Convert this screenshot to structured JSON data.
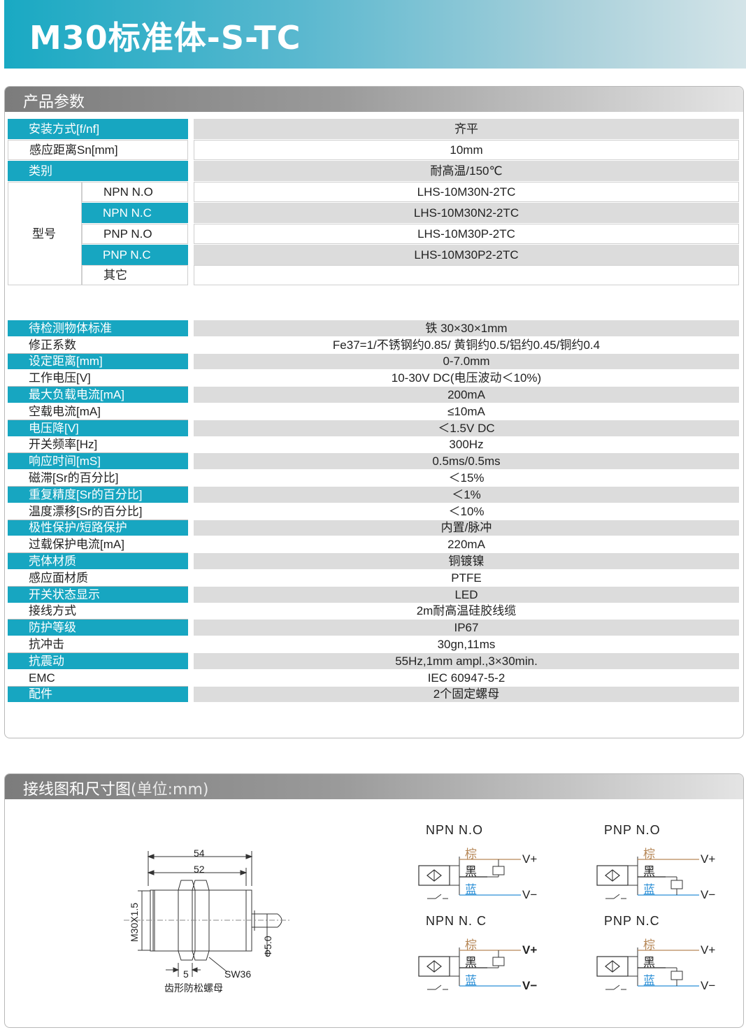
{
  "title": "M30标准体-S-TC",
  "params_heading": "产品参数",
  "top_table": {
    "mount": {
      "label": "安装方式[f/nf]",
      "value": "齐平"
    },
    "distance": {
      "label": "感应距离Sn[mm]",
      "value": "10mm"
    },
    "category": {
      "label": "类别",
      "value": "耐高温/150℃"
    },
    "model_label": "型号",
    "models": [
      {
        "type": "NPN N.O",
        "value": "LHS-10M30N-2TC"
      },
      {
        "type": "NPN N.C",
        "value": "LHS-10M30N2-2TC"
      },
      {
        "type": "PNP N.O",
        "value": "LHS-10M30P-2TC"
      },
      {
        "type": "PNP N.C",
        "value": "LHS-10M30P2-2TC"
      },
      {
        "type": "其它",
        "value": ""
      }
    ]
  },
  "specs": [
    {
      "label": "待检测物体标准",
      "value": "铁 30×30×1mm"
    },
    {
      "label": "修正系数",
      "value": "Fe37=1/不锈钢约0.85/  黄铜约0.5/铝约0.45/铜约0.4"
    },
    {
      "label": "设定距离[mm]",
      "value": "0-7.0mm"
    },
    {
      "label": "工作电压[V]",
      "value": "10-30V DC(电压波动＜10%)"
    },
    {
      "label": "最大负载电流[mA]",
      "value": "200mA"
    },
    {
      "label": "空载电流[mA]",
      "value": "≤10mA"
    },
    {
      "label": "电压降[V]",
      "value": "＜1.5V DC"
    },
    {
      "label": "开关频率[Hz]",
      "value": "300Hz"
    },
    {
      "label": "响应时间[mS]",
      "value": "0.5ms/0.5ms"
    },
    {
      "label": "磁滞[Sr的百分比]",
      "value": "＜15%"
    },
    {
      "label": "重复精度[Sr的百分比]",
      "value": "＜1%"
    },
    {
      "label": "温度漂移[Sr的百分比]",
      "value": "＜10%"
    },
    {
      "label": "极性保护/短路保护",
      "value": "内置/脉冲"
    },
    {
      "label": "过载保护电流[mA]",
      "value": "220mA"
    },
    {
      "label": "壳体材质",
      "value": "铜镀镍"
    },
    {
      "label": "感应面材质",
      "value": "PTFE"
    },
    {
      "label": "开关状态显示",
      "value": "LED"
    },
    {
      "label": "接线方式",
      "value": "2m耐高温硅胶线缆"
    },
    {
      "label": "防护等级",
      "value": "IP67"
    },
    {
      "label": "抗冲击",
      "value": "30gn,11ms"
    },
    {
      "label": "抗震动",
      "value": "55Hz,1mm ampl.,3×30min."
    },
    {
      "label": "EMC",
      "value": "IEC 60947-5-2"
    },
    {
      "label": "配件",
      "value": "2个固定螺母"
    }
  ],
  "wiring": {
    "heading": "接线图和尺寸图",
    "heading_unit": "(单位:mm)",
    "dimension": {
      "d54": "54",
      "d52": "52",
      "thread": "M30X1.5",
      "d5": "Φ5.0",
      "w5": "5",
      "sw": "SW36",
      "nut": "齿形防松螺母"
    },
    "diagrams": [
      {
        "title": "NPN  N.O",
        "brown": "棕",
        "black": "黑",
        "blue": "蓝",
        "vplus": "V+",
        "vminus": "V−"
      },
      {
        "title": "PNP  N.O",
        "brown": "棕",
        "black": "黑",
        "blue": "蓝",
        "vplus": "V+",
        "vminus": "V−"
      },
      {
        "title": "NPN   N. C",
        "brown": "棕",
        "black": "黑",
        "blue": "蓝",
        "vplus": "V+",
        "vminus": "V−"
      },
      {
        "title": "PNP  N.C",
        "brown": "棕",
        "black": "黑",
        "blue": "蓝",
        "vplus": "V+",
        "vminus": "V−"
      }
    ]
  },
  "colors": {
    "accent": "#17a6c1",
    "brown_wire": "#b68757",
    "blue_wire": "#2b8fd6",
    "row_gray": "#dcdcdc"
  }
}
